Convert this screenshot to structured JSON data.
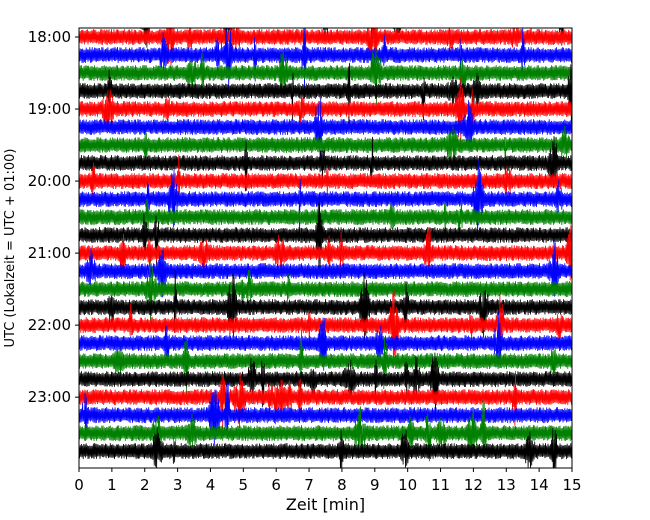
{
  "chart_data": {
    "type": "line",
    "title": "",
    "xlabel": "Zeit  [min]",
    "ylabel": "UTC (Lokalzeit = UTC + 01:00)",
    "xlim": [
      0,
      15
    ],
    "x_ticks": [
      0,
      1,
      2,
      3,
      4,
      5,
      6,
      7,
      8,
      9,
      10,
      11,
      12,
      13,
      14,
      15
    ],
    "x_tick_labels": [
      "0",
      "1",
      "2",
      "3",
      "4",
      "5",
      "6",
      "7",
      "8",
      "9",
      "10",
      "11",
      "12",
      "13",
      "14",
      "15"
    ],
    "y_ticks": [
      "18:00",
      "19:00",
      "20:00",
      "21:00",
      "22:00",
      "23:00"
    ],
    "y_range_utc": [
      "17:52:30",
      "23:59"
    ],
    "trace_interval_minutes": 15,
    "trace_start": "17:45",
    "trace_count": 25,
    "trace_color_cycle": [
      "#000000",
      "#ff0000",
      "#0000ff",
      "#008000"
    ],
    "grid": false,
    "legend": "none",
    "description_type": "helicorder seismogram traces"
  }
}
